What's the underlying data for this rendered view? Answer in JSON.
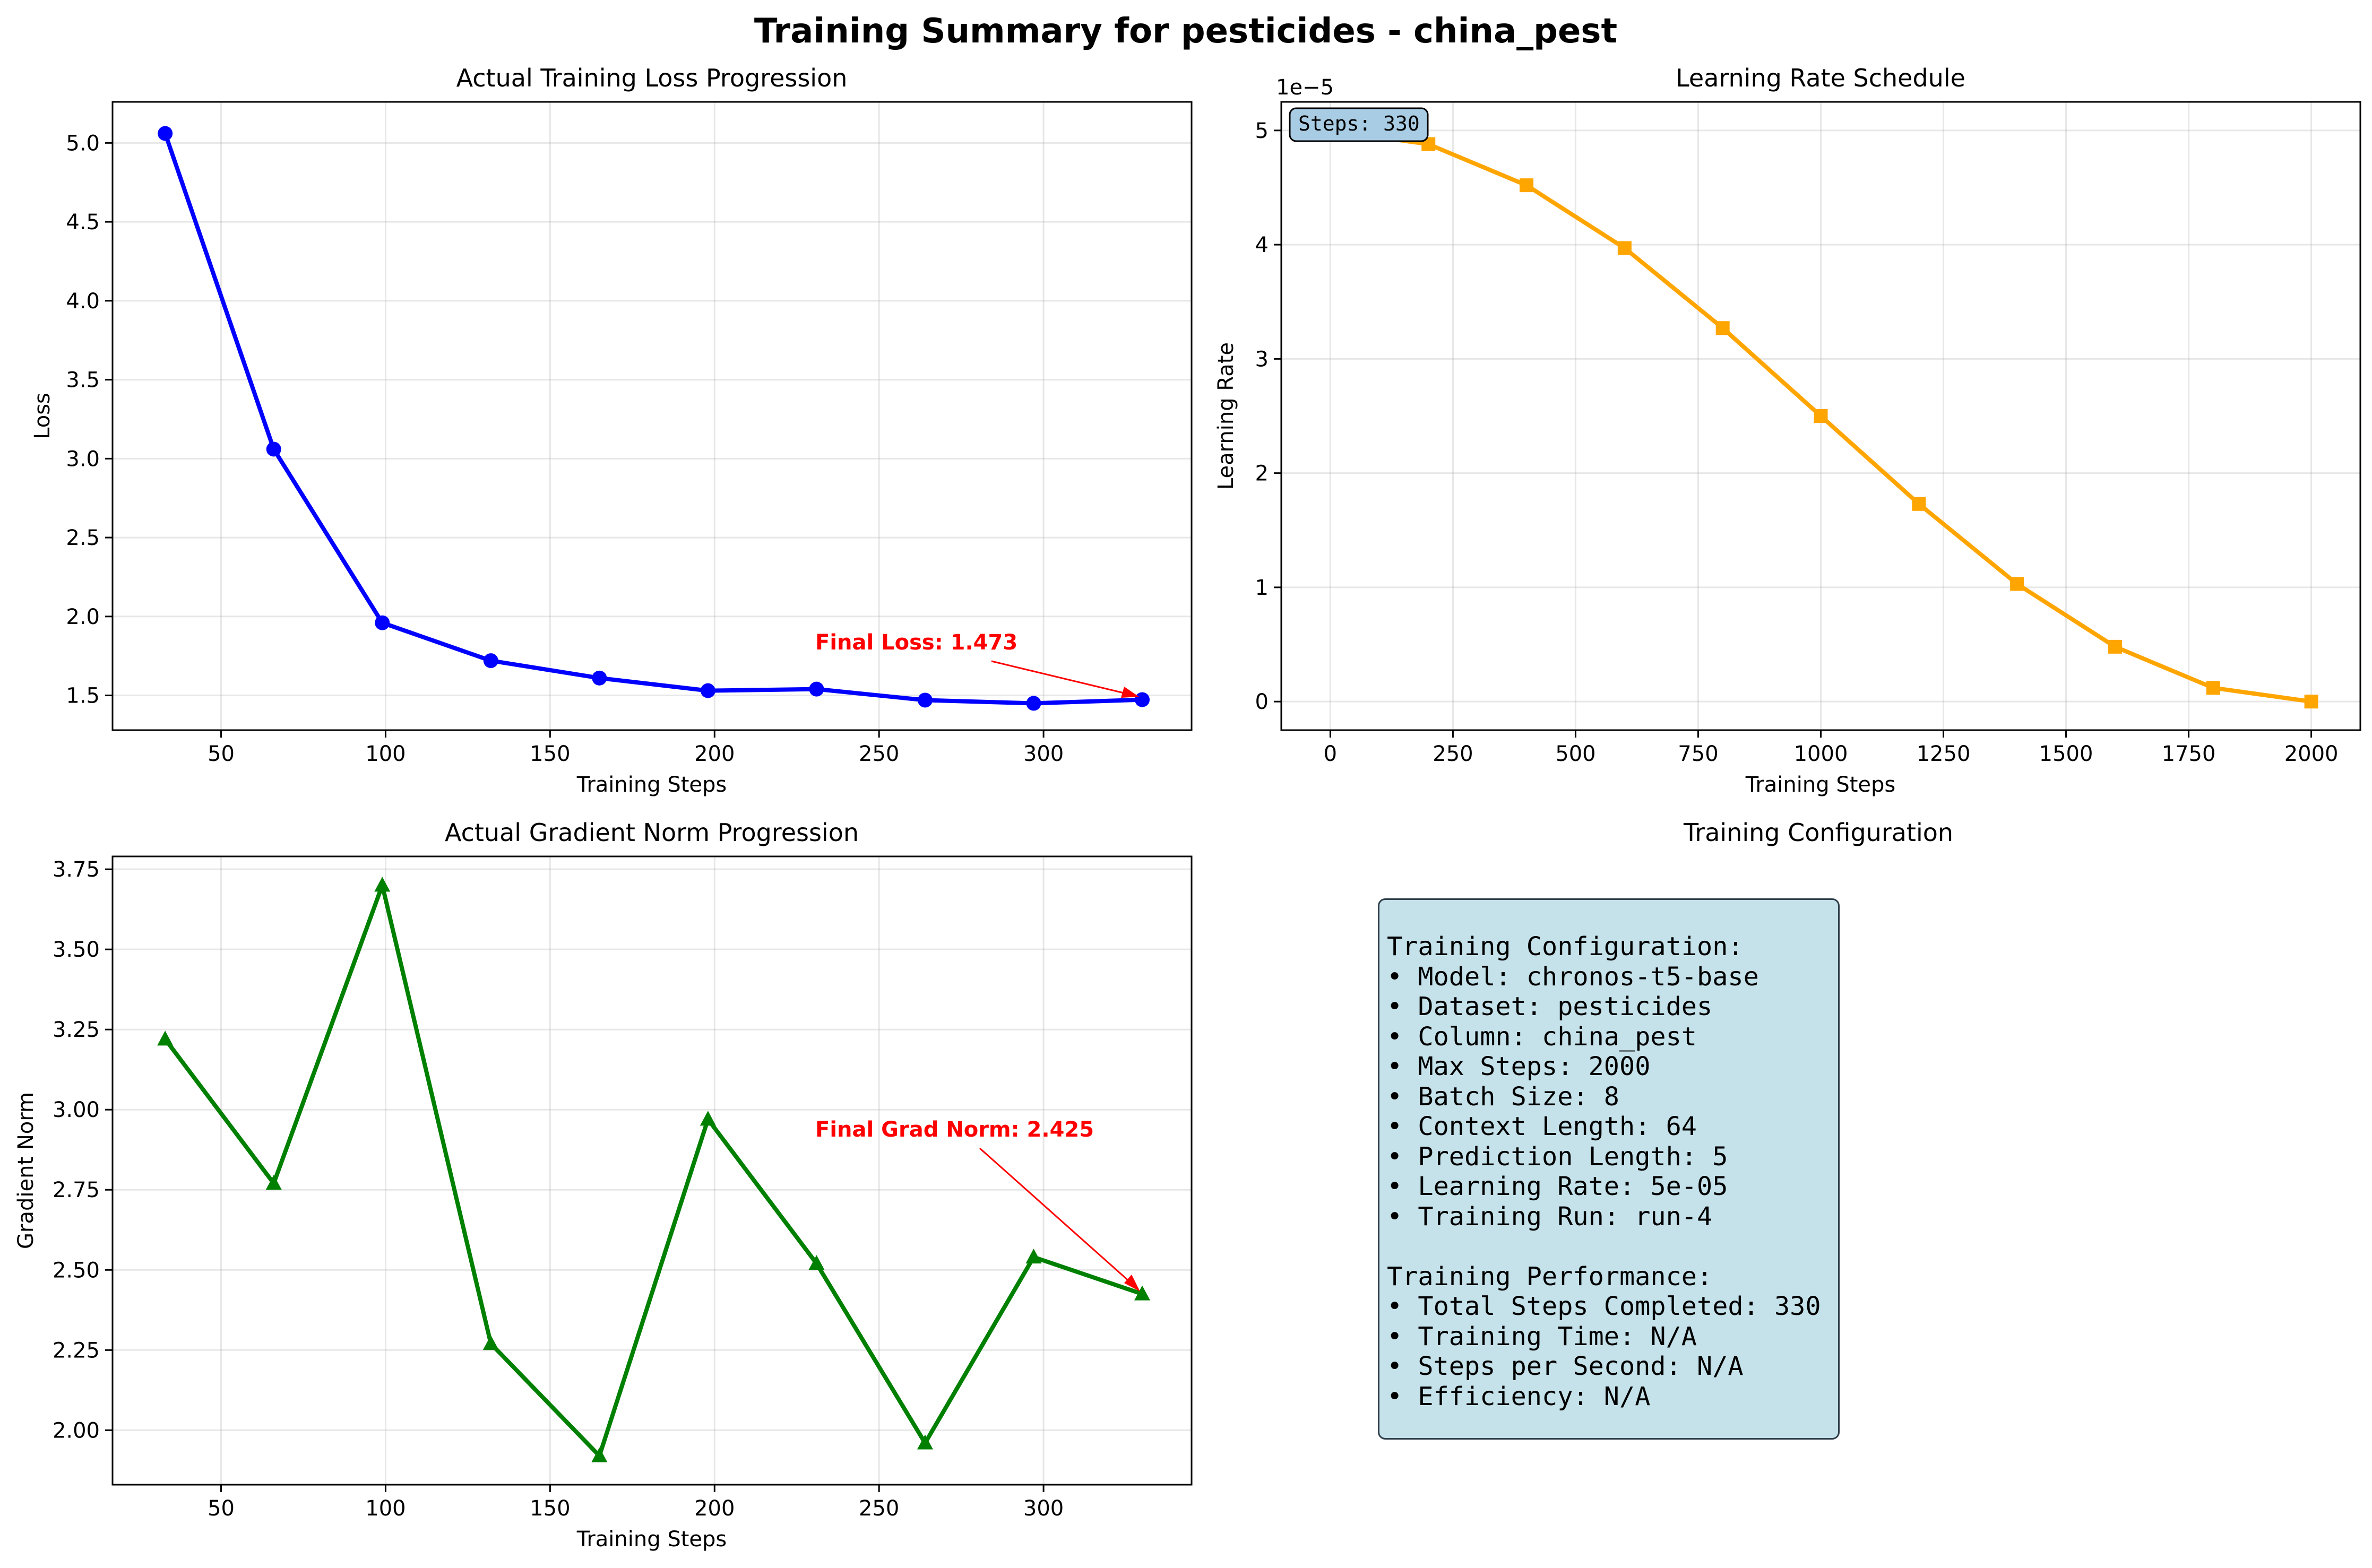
{
  "figure": {
    "title": "Training Summary for pesticides - china_pest"
  },
  "panels": {
    "loss": {
      "title": "Actual Training Loss Progression",
      "xlabel": "Training Steps",
      "ylabel": "Loss",
      "annotation": "Final Loss: 1.473"
    },
    "lr": {
      "title": "Learning Rate Schedule",
      "xlabel": "Training Steps",
      "ylabel": "Learning Rate",
      "offset_text": "1e−5",
      "steps_box": "Steps: 330"
    },
    "grad": {
      "title": "Actual Gradient Norm Progression",
      "xlabel": "Training Steps",
      "ylabel": "Gradient Norm",
      "annotation": "Final Grad Norm: 2.425"
    },
    "config": {
      "title": "Training Configuration",
      "lines": [
        "Training Configuration:",
        "• Model: chronos-t5-base",
        "• Dataset: pesticides",
        "• Column: china_pest",
        "• Max Steps: 2000",
        "• Batch Size: 8",
        "• Context Length: 64",
        "• Prediction Length: 5",
        "• Learning Rate: 5e-05",
        "• Training Run: run-4",
        "",
        "Training Performance:",
        "• Total Steps Completed: 330",
        "• Training Time: N/A",
        "• Steps per Second: N/A",
        "• Efficiency: N/A"
      ]
    }
  },
  "chart_data": [
    {
      "type": "line",
      "title": "Actual Training Loss Progression",
      "xlabel": "Training Steps",
      "ylabel": "Loss",
      "x": [
        33,
        66,
        99,
        132,
        165,
        198,
        231,
        264,
        297,
        330
      ],
      "y": [
        5.06,
        3.06,
        1.96,
        1.72,
        1.61,
        1.53,
        1.54,
        1.47,
        1.45,
        1.473
      ],
      "xlim": [
        17,
        345
      ],
      "ylim": [
        1.28,
        5.26
      ],
      "xticks": [
        50,
        100,
        150,
        200,
        250,
        300
      ],
      "yticks": [
        1.5,
        2.0,
        2.5,
        3.0,
        3.5,
        4.0,
        4.5,
        5.0
      ],
      "color": "#0000ff",
      "marker": "circle",
      "grid": true
    },
    {
      "type": "line",
      "title": "Learning Rate Schedule",
      "xlabel": "Training Steps",
      "ylabel": "Learning Rate",
      "x": [
        0,
        200,
        400,
        600,
        800,
        1000,
        1200,
        1400,
        1600,
        1800,
        2000
      ],
      "y": [
        5e-05,
        4.88e-05,
        4.52e-05,
        3.97e-05,
        3.27e-05,
        2.5e-05,
        1.73e-05,
        1.03e-05,
        4.8e-06,
        1.2e-06,
        0.0
      ],
      "y_scale_exponent": -5,
      "xlim": [
        -100,
        2100
      ],
      "ylim": [
        -2.5e-06,
        5.25e-05
      ],
      "xticks": [
        0,
        250,
        500,
        750,
        1000,
        1250,
        1500,
        1750,
        2000
      ],
      "yticks": [
        0,
        1,
        2,
        3,
        4,
        5
      ],
      "color": "#ffa500",
      "marker": "square",
      "grid": true
    },
    {
      "type": "line",
      "title": "Actual Gradient Norm Progression",
      "xlabel": "Training Steps",
      "ylabel": "Gradient Norm",
      "x": [
        33,
        66,
        99,
        132,
        165,
        198,
        231,
        264,
        297,
        330
      ],
      "y": [
        3.22,
        2.77,
        3.7,
        2.27,
        1.92,
        2.97,
        2.52,
        1.96,
        2.54,
        2.425
      ],
      "xlim": [
        17,
        345
      ],
      "ylim": [
        1.83,
        3.79
      ],
      "xticks": [
        50,
        100,
        150,
        200,
        250,
        300
      ],
      "yticks": [
        2.0,
        2.25,
        2.5,
        2.75,
        3.0,
        3.25,
        3.5,
        3.75
      ],
      "color": "#008000",
      "marker": "triangle",
      "grid": true
    }
  ]
}
